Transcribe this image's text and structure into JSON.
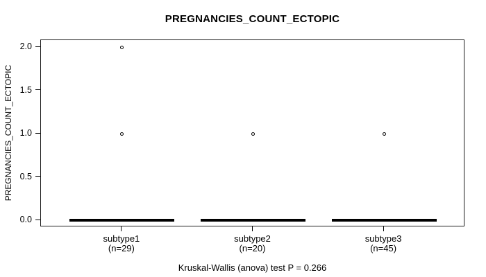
{
  "chart_data": {
    "type": "boxplot",
    "title": "PREGNANCIES_COUNT_ECTOPIC",
    "ylabel": "PREGNANCIES_COUNT_ECTOPIC",
    "xlabel": "",
    "ylim": [
      0,
      2
    ],
    "yticks": [
      {
        "value": 0,
        "label": "0.0"
      },
      {
        "value": 0.5,
        "label": "0.5"
      },
      {
        "value": 1,
        "label": "1.0"
      },
      {
        "value": 1.5,
        "label": "1.5"
      },
      {
        "value": 2,
        "label": "2.0"
      }
    ],
    "grid": false,
    "legend": false,
    "groups": [
      {
        "label": "subtype1",
        "sublabel": "(n=29)",
        "n": 29,
        "median": 0,
        "q1": 0,
        "q3": 0,
        "whisker_low": 0,
        "whisker_high": 0,
        "outliers": [
          1,
          2
        ]
      },
      {
        "label": "subtype2",
        "sublabel": "(n=20)",
        "n": 20,
        "median": 0,
        "q1": 0,
        "q3": 0,
        "whisker_low": 0,
        "whisker_high": 0,
        "outliers": [
          1
        ]
      },
      {
        "label": "subtype3",
        "sublabel": "(n=45)",
        "n": 45,
        "median": 0,
        "q1": 0,
        "q3": 0,
        "whisker_low": 0,
        "whisker_high": 0,
        "outliers": [
          1
        ]
      }
    ],
    "annotation": "Kruskal-Wallis (anova) test P = 0.266",
    "colors": {
      "foreground": "#000000",
      "background": "#ffffff"
    }
  }
}
